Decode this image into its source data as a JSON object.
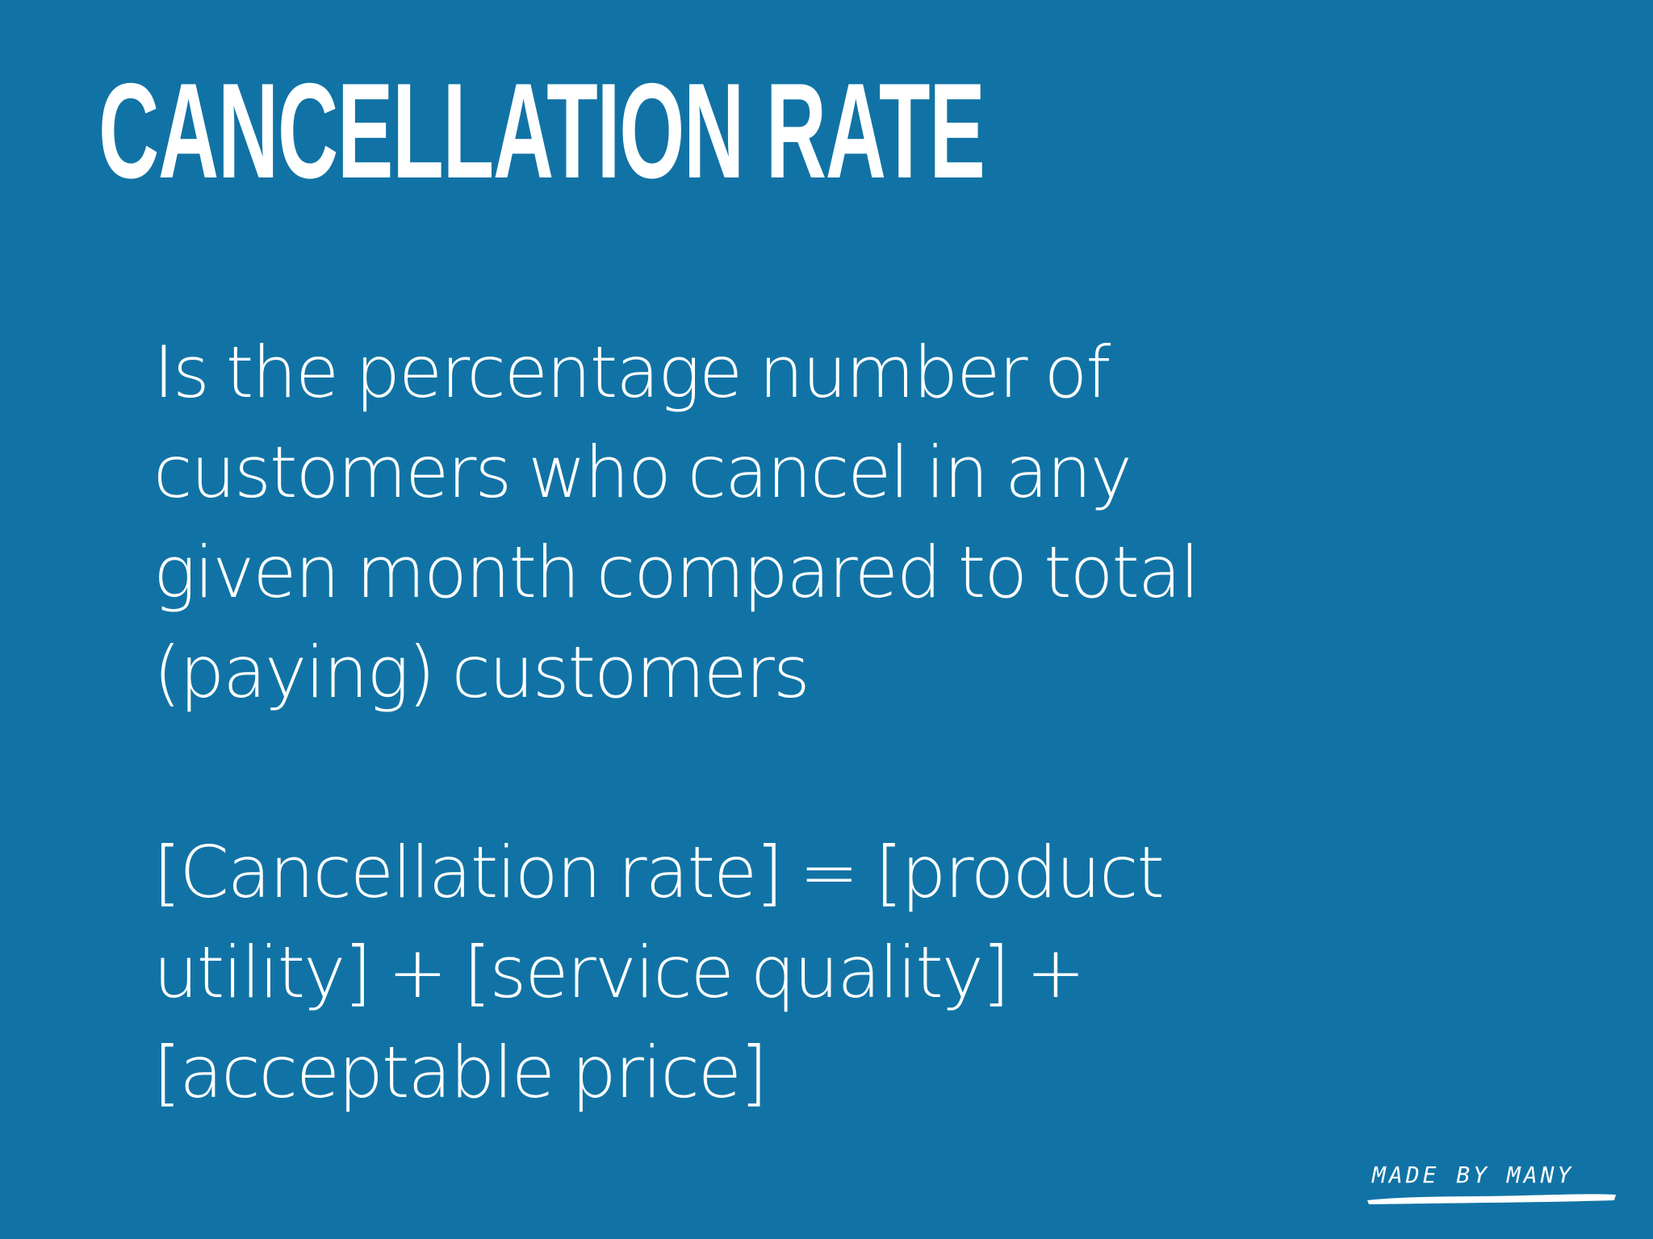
{
  "slide": {
    "title": "CANCELLATION RATE",
    "definition_lines": [
      "Is the percentage number of",
      "customers who cancel in any",
      "given month compared to total",
      "(paying) customers"
    ],
    "formula_lines": [
      "[Cancellation rate] = [product",
      "utility] + [service quality] +",
      "[acceptable price]"
    ],
    "logo_text": "MADE BY MANY"
  },
  "colors": {
    "background": "#1173a5",
    "text": "#ffffff"
  }
}
